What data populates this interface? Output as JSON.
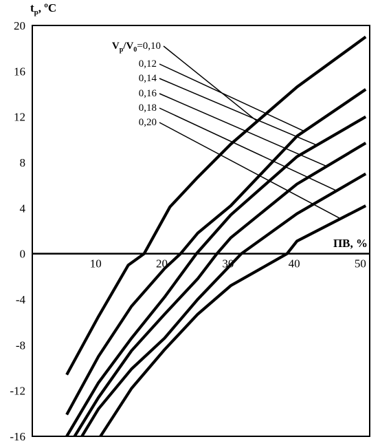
{
  "chart_data": {
    "type": "line",
    "title": "",
    "ylabel_main": "t",
    "ylabel_sub": "р",
    "ylabel_unit": ", ºC",
    "xlabel": "ПВ, %",
    "xlim": [
      0,
      51
    ],
    "ylim": [
      -16,
      20
    ],
    "x_ticks": [
      "10",
      "20",
      "30",
      "40",
      "50"
    ],
    "y_ticks": [
      "20",
      "16",
      "12",
      "8",
      "4",
      "0",
      "-4",
      "-8",
      "-12",
      "-16"
    ],
    "legend_prefix": "V",
    "legend_prefix_sub1": "р",
    "legend_mid": "/V",
    "legend_prefix_sub2": "0",
    "series": [
      {
        "name": "0,10",
        "x": [
          5.2,
          10,
          14.5,
          16.9,
          20.8,
          25,
          30,
          40,
          50.4
        ],
        "y": [
          -10.6,
          -5.5,
          -1.0,
          0.0,
          4.1,
          6.7,
          9.6,
          14.6,
          19.0
        ]
      },
      {
        "name": "0,12",
        "x": [
          5.2,
          10,
          15,
          20,
          22.4,
          25,
          30,
          40,
          50.4
        ],
        "y": [
          -14.1,
          -9.0,
          -4.6,
          -1.3,
          0.0,
          1.8,
          4.2,
          10.3,
          14.4
        ]
      },
      {
        "name": "0,14",
        "x": [
          5.2,
          10,
          15,
          20,
          24.8,
          30,
          40,
          50.4
        ],
        "y": [
          -16.0,
          -11.3,
          -7.4,
          -3.8,
          0.0,
          3.4,
          8.5,
          12.0
        ]
      },
      {
        "name": "0,16",
        "x": [
          6.4,
          10,
          15,
          20,
          25,
          27.9,
          30,
          40,
          50.4
        ],
        "y": [
          -16.0,
          -12.6,
          -8.5,
          -5.3,
          -2.2,
          0.0,
          1.4,
          6.1,
          9.7
        ]
      },
      {
        "name": "0,18",
        "x": [
          7.5,
          10,
          15,
          20,
          25,
          31.6,
          40,
          50.4
        ],
        "y": [
          -16.0,
          -13.6,
          -10.1,
          -7.4,
          -4.0,
          0.0,
          3.5,
          7.0
        ]
      },
      {
        "name": "0,20",
        "x": [
          10.3,
          15,
          20,
          25,
          30,
          38.5,
          40,
          50.4
        ],
        "y": [
          -16.0,
          -11.8,
          -8.4,
          -5.3,
          -2.8,
          0.0,
          1.1,
          4.2
        ]
      }
    ],
    "grid": false
  }
}
